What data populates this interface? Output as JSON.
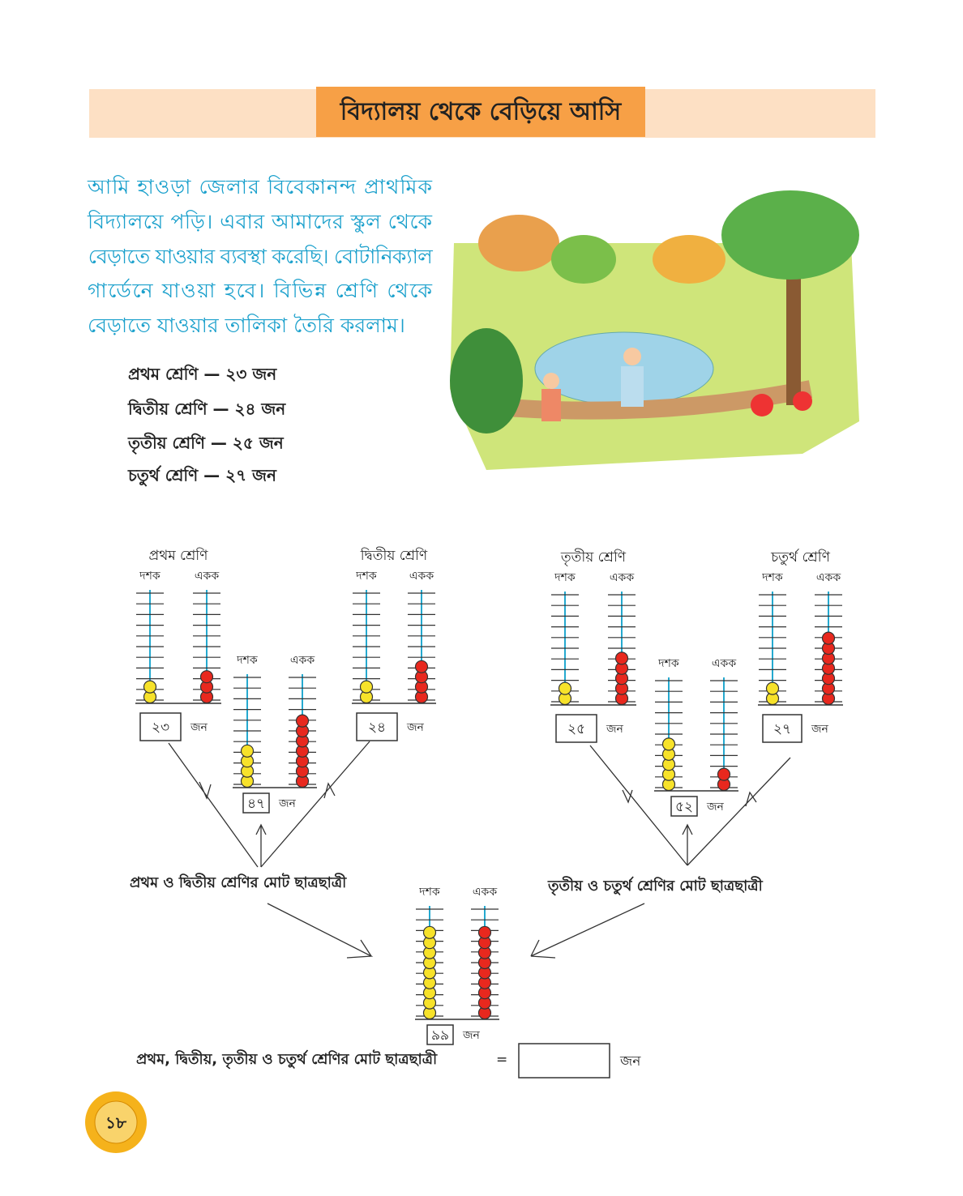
{
  "header": {
    "title": "বিদ্যালয় থেকে বেড়িয়ে আসি"
  },
  "paragraph": [
    "আমি হাওড়া জেলার বিবেকানন্দ প্রাথমিক",
    "বিদ্যালয়ে পড়ি। এবার আমাদের স্কুল থেকে",
    "বেড়াতে যাওয়ার ব্যবস্থা করেছি। বোটানিক্যাল",
    "গার্ডেনে যাওয়া হবে। বিভিন্ন শ্রেণি থেকে",
    "বেড়াতে যাওয়ার তালিকা তৈরি করলাম।"
  ],
  "class_list": [
    "প্রথম শ্রেণি — ২৩ জন",
    "দ্বিতীয় শ্রেণি — ২৪ জন",
    "তৃতীয় শ্রেণি — ২৫ জন",
    "চতুর্থ শ্রেণি — ২৭ জন"
  ],
  "abacus_labels": {
    "tens": "দশক",
    "ones": "একক",
    "unit": "জন"
  },
  "abaci": [
    {
      "title": "প্রথম শ্রেণি",
      "tens": 2,
      "ones": 3,
      "box": "২৩"
    },
    {
      "title": "দ্বিতীয় শ্রেণি",
      "tens": 2,
      "ones": 4,
      "box": "২৪"
    },
    {
      "tens": 4,
      "ones": 7,
      "box": "৪৭"
    },
    {
      "title": "তৃতীয় শ্রেণি",
      "tens": 2,
      "ones": 5,
      "box": "২৫"
    },
    {
      "title": "চতুর্থ শ্রেণি",
      "tens": 2,
      "ones": 7,
      "box": "২৭"
    },
    {
      "tens": 5,
      "ones": 2,
      "box": "৫২"
    },
    {
      "tens": 9,
      "ones": 9,
      "box": "৯৯"
    }
  ],
  "captions": [
    "প্রথম ও দ্বিতীয় শ্রেণির মোট ছাত্রছাত্রী",
    "তৃতীয় ও চতুর্থ শ্রেণির মোট ছাত্রছাত্রী"
  ],
  "total": {
    "text": "প্রথম, দ্বিতীয়, তৃতীয় ও চতুর্থ শ্রেণির মোট ছাত্রছাত্রী",
    "equals": "=",
    "unit": "জন"
  },
  "page_number": "১৮"
}
